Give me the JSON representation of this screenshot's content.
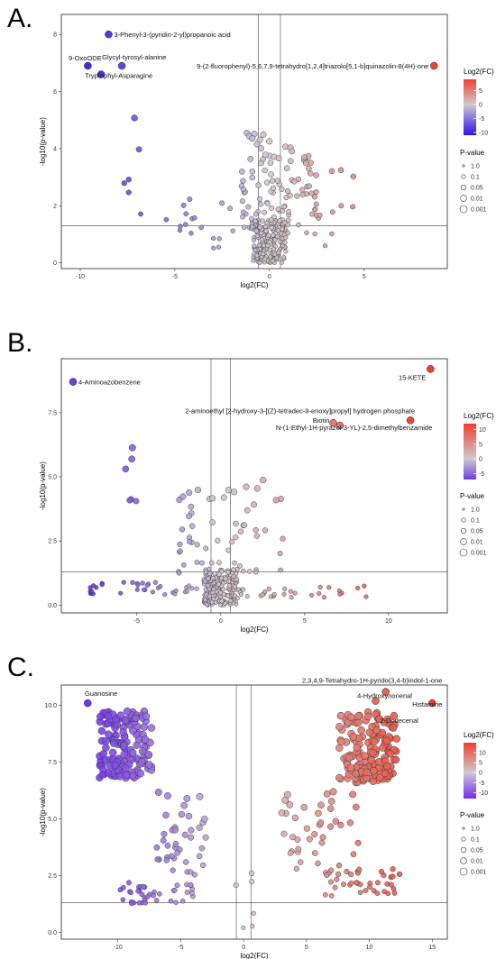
{
  "chart_data": [
    {
      "panel": "A.",
      "type": "scatter",
      "xlabel": "log2(FC)",
      "ylabel": "-log10(p-value)",
      "xlim": [
        -11,
        9.4
      ],
      "ylim": [
        -0.2,
        8.7
      ],
      "xticks": [
        -10,
        -5,
        0,
        5
      ],
      "yticks": [
        0,
        2,
        4,
        6,
        8
      ],
      "vlines": [
        -0.58,
        0.58
      ],
      "hline": 1.3,
      "color_scale": {
        "title": "Log2(FC)",
        "min": -11,
        "max": 9,
        "ticks": [
          5,
          0,
          -5,
          -10
        ],
        "low": "#2f12e6",
        "mid": "#cfc8cf",
        "high": "#f0402c"
      },
      "size_legend": {
        "title": "P-value",
        "labels": [
          "1.0",
          "0.1",
          "0.05",
          "0.01",
          "0.001"
        ]
      },
      "labeled_points": [
        {
          "label": "3-Phenyl-3-(pyridin-2-yl)propanoic acid",
          "x": -8.5,
          "y": 8.0
        },
        {
          "label": "9-OxoODE",
          "x": -9.6,
          "y": 6.9
        },
        {
          "label": "Glycyl-tyrosyl-alanine",
          "x": -7.8,
          "y": 6.9
        },
        {
          "label": "Tryptophyl-Asparagine",
          "x": -8.9,
          "y": 6.6
        },
        {
          "label": "9-(2-fluorophenyl)-5,6,7,9-tetrahydro[1,2,4]triazolo[5,1-b]quinazolin-8(4H)-one",
          "x": 8.7,
          "y": 6.9
        }
      ]
    },
    {
      "panel": "B.",
      "type": "scatter",
      "xlabel": "log2(FC)",
      "ylabel": "-log10(p-value)",
      "xlim": [
        -9.5,
        13.5
      ],
      "ylim": [
        -0.3,
        9.6
      ],
      "xticks": [
        -5,
        0,
        5,
        10
      ],
      "yticks": [
        0.0,
        2.5,
        5.0,
        7.5
      ],
      "vlines": [
        -0.58,
        0.58
      ],
      "hline": 1.3,
      "color_scale": {
        "title": "Log2(FC)",
        "min": -7,
        "max": 12,
        "ticks": [
          10,
          5,
          0,
          -5
        ],
        "low": "#6a3ee0",
        "mid": "#cfc8cf",
        "high": "#f0402c"
      },
      "size_legend": {
        "title": "P-value",
        "labels": [
          "1.0",
          "0.1",
          "0.05",
          "0.01",
          "0.001"
        ]
      },
      "labeled_points": [
        {
          "label": "4-Aminoazobenzene",
          "x": -8.8,
          "y": 8.7
        },
        {
          "label": "15-KETE",
          "x": 12.5,
          "y": 9.2
        },
        {
          "label": "2-aminoethyl [2-hydroxy-3-[(Z)-tetradec-9-enoxy]propyl] hydrogen phosphate",
          "x": 11.3,
          "y": 7.2
        },
        {
          "label": "Biotin",
          "x": 6.7,
          "y": 7.1
        },
        {
          "label": "N-(1-Ethyl-1H-pyrazol-3-YL)-2,5-dimethylbenzamide",
          "x": 7.1,
          "y": 7.0
        }
      ]
    },
    {
      "panel": "C.",
      "type": "scatter",
      "xlabel": "log2(FC)",
      "ylabel": "-log10(p-value)",
      "xlim": [
        -14.5,
        16.2
      ],
      "ylim": [
        -0.3,
        10.9
      ],
      "xticks": [
        -10,
        -5,
        0,
        5,
        10,
        15
      ],
      "yticks": [
        0.0,
        2.5,
        5.0,
        7.5,
        10.0
      ],
      "vlines": [
        -0.58,
        0.58
      ],
      "hline": 1.3,
      "color_scale": {
        "title": "Log2(FC)",
        "min": -13,
        "max": 15,
        "ticks": [
          10,
          5,
          0,
          -5,
          -10
        ],
        "low": "#6f2cf0",
        "mid": "#cfc8cf",
        "high": "#f0402c"
      },
      "size_legend": {
        "title": "P-value",
        "labels": [
          "1.0",
          "0.1",
          "0.05",
          "0.01",
          "0.001"
        ]
      },
      "labeled_points": [
        {
          "label": "Guanosine",
          "x": -12.4,
          "y": 10.1
        },
        {
          "label": "2,3,4,9-Tetrahydro-1H-pyrido(3,4-b)indol-1-one",
          "x": 11.3,
          "y": 10.6
        },
        {
          "label": "4-Hydroxynonenal",
          "x": 10.5,
          "y": 10.2
        },
        {
          "label": "Histamine",
          "x": 15.0,
          "y": 10.1
        },
        {
          "label": "2-Dodecenal",
          "x": 10.8,
          "y": 9.4
        }
      ]
    }
  ]
}
